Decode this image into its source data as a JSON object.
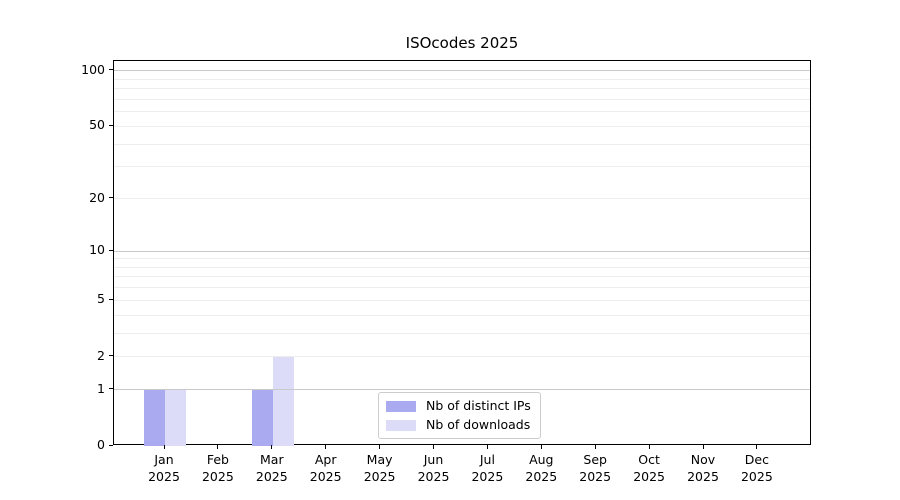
{
  "title": "ISOcodes 2025",
  "chart_data": {
    "type": "bar",
    "title": "ISOcodes 2025",
    "x_months": [
      "Jan",
      "Feb",
      "Mar",
      "Apr",
      "May",
      "Jun",
      "Jul",
      "Aug",
      "Sep",
      "Oct",
      "Nov",
      "Dec"
    ],
    "x_year": "2025",
    "series": [
      {
        "name": "Nb of distinct IPs",
        "color": "#aaaaf0",
        "values": [
          1,
          0,
          1,
          0,
          0,
          0,
          0,
          0,
          0,
          0,
          0,
          0
        ]
      },
      {
        "name": "Nb of downloads",
        "color": "#dcdcf8",
        "values": [
          1,
          0,
          2,
          0,
          0,
          0,
          0,
          0,
          0,
          0,
          0,
          0
        ]
      }
    ],
    "yscale": "log1p",
    "ylim": [
      0,
      113
    ],
    "y_tick_values": [
      0,
      1,
      2,
      5,
      10,
      20,
      50,
      100
    ],
    "y_major_gridlines": [
      1,
      10,
      100
    ],
    "y_minor_gridlines": [
      2,
      3,
      4,
      5,
      6,
      7,
      8,
      9,
      20,
      30,
      40,
      50,
      60,
      70,
      80,
      90
    ],
    "grid": true,
    "legend_position": "lower center"
  },
  "colors": {
    "background": "#ffffff",
    "spine": "#000000",
    "text": "#000000",
    "major_grid": "#c9c9c9",
    "minor_grid": "#ededed",
    "legend_border": "#cccccc"
  }
}
